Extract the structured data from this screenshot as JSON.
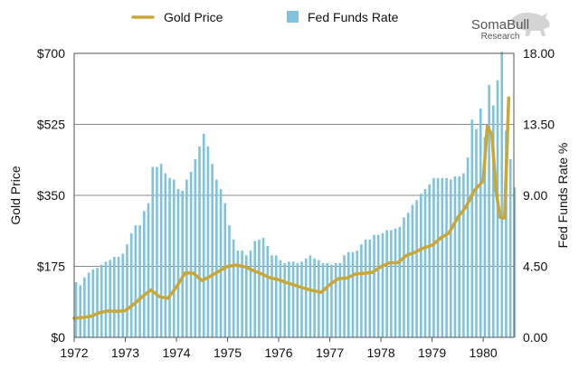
{
  "chart_data": {
    "type": "bar+line",
    "title": "",
    "xlabel": "",
    "ylabel_left": "Gold Price",
    "ylabel_right": "Fed Funds Rate %",
    "x_ticks": [
      "1972",
      "1973",
      "1974",
      "1975",
      "1976",
      "1977",
      "1978",
      "1979",
      "1980"
    ],
    "x_range": [
      1972.0,
      1980.6
    ],
    "y_left_ticks": [
      "$0",
      "$175",
      "$350",
      "$525",
      "$700"
    ],
    "y_left_range": [
      0,
      700
    ],
    "y_right_ticks": [
      "0.00",
      "4.50",
      "9.00",
      "13.50",
      "18.00"
    ],
    "y_right_range": [
      0,
      18
    ],
    "grid": true,
    "legend_position": "top",
    "series": [
      {
        "name": "Gold Price",
        "type": "line",
        "axis": "left",
        "color": "#c9a83a",
        "x": [
          1972.0,
          1972.17,
          1972.33,
          1972.5,
          1972.67,
          1972.83,
          1973.0,
          1973.17,
          1973.33,
          1973.5,
          1973.67,
          1973.83,
          1974.0,
          1974.17,
          1974.33,
          1974.5,
          1974.67,
          1974.83,
          1975.0,
          1975.17,
          1975.33,
          1975.5,
          1975.67,
          1975.83,
          1976.0,
          1976.17,
          1976.33,
          1976.5,
          1976.67,
          1976.83,
          1977.0,
          1977.17,
          1977.33,
          1977.5,
          1977.67,
          1977.83,
          1978.0,
          1978.17,
          1978.33,
          1978.5,
          1978.67,
          1978.83,
          1979.0,
          1979.17,
          1979.33,
          1979.5,
          1979.67,
          1979.83,
          1980.0,
          1980.08,
          1980.17,
          1980.25,
          1980.33,
          1980.42,
          1980.5
        ],
        "values": [
          47,
          49,
          52,
          61,
          65,
          64,
          66,
          82,
          100,
          117,
          100,
          96,
          124,
          159,
          158,
          140,
          151,
          163,
          175,
          178,
          174,
          165,
          156,
          147,
          142,
          134,
          128,
          121,
          115,
          111,
          130,
          145,
          146,
          156,
          158,
          160,
          174,
          184,
          184,
          202,
          210,
          220,
          227,
          245,
          257,
          295,
          323,
          363,
          385,
          520,
          500,
          363,
          296,
          294,
          590
        ]
      },
      {
        "name": "Fed Funds Rate",
        "type": "bar",
        "axis": "right",
        "color": "#7ec3de",
        "x_start": 1972.0,
        "x_step": 0.0833,
        "values": [
          3.5,
          3.3,
          3.8,
          4.1,
          4.3,
          4.4,
          4.6,
          4.8,
          4.9,
          5.1,
          5.1,
          5.3,
          5.9,
          6.6,
          7.1,
          7.1,
          8.0,
          8.5,
          10.8,
          10.8,
          11.0,
          10.4,
          10.1,
          10.0,
          9.4,
          9.3,
          10.0,
          10.5,
          11.3,
          12.1,
          12.9,
          12.1,
          11.0,
          10.0,
          9.4,
          8.5,
          7.1,
          6.2,
          5.5,
          5.5,
          5.2,
          5.5,
          6.1,
          6.2,
          6.3,
          5.8,
          5.2,
          5.2,
          4.9,
          4.7,
          4.8,
          4.8,
          4.7,
          4.8,
          5.0,
          5.2,
          5.0,
          4.9,
          4.7,
          4.7,
          4.6,
          4.7,
          4.7,
          5.2,
          5.4,
          5.4,
          5.5,
          5.9,
          6.2,
          6.2,
          6.5,
          6.5,
          6.6,
          6.8,
          6.8,
          6.9,
          7.0,
          7.6,
          7.9,
          8.4,
          8.7,
          9.1,
          9.4,
          9.7,
          10.1,
          10.1,
          10.1,
          10.1,
          10.0,
          10.2,
          10.2,
          10.4,
          11.4,
          13.8,
          13.2,
          14.5,
          12.7,
          16.0,
          14.7,
          16.3,
          18.1,
          13.1,
          11.3,
          9.5
        ]
      }
    ]
  },
  "logo": {
    "line1": "SomaBull",
    "line2": "Research"
  }
}
